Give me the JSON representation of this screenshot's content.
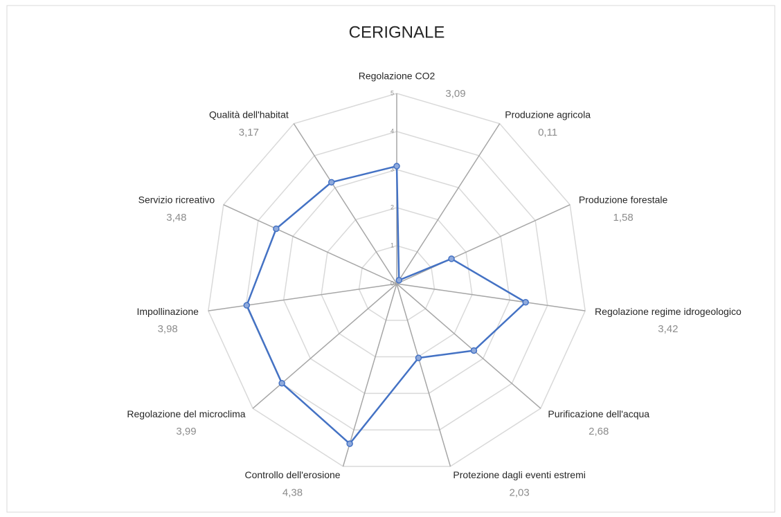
{
  "chart_data": {
    "type": "radar",
    "title": "CERIGNALE",
    "categories": [
      "Regolazione CO2",
      "Produzione agricola",
      "Produzione forestale",
      "Regolazione regime idrogeologico",
      "Purificazione dell'acqua",
      "Protezione dagli eventi estremi",
      "Controllo dell'erosione",
      "Regolazione del microclima",
      "Impollinazione",
      "Servizio ricreativo",
      "Qualità dell'habitat"
    ],
    "values": [
      3.09,
      0.11,
      1.58,
      3.42,
      2.68,
      2.03,
      4.38,
      3.99,
      3.98,
      3.48,
      3.17
    ],
    "value_labels": [
      "3,09",
      "0,11",
      "1,58",
      "3,42",
      "2,68",
      "2,03",
      "4,38",
      "3,99",
      "3,98",
      "3,48",
      "3,17"
    ],
    "color": "#4472c4",
    "ylim": [
      0,
      5
    ],
    "yticks": [
      0,
      1,
      2,
      3,
      4,
      5
    ],
    "grid": true
  }
}
